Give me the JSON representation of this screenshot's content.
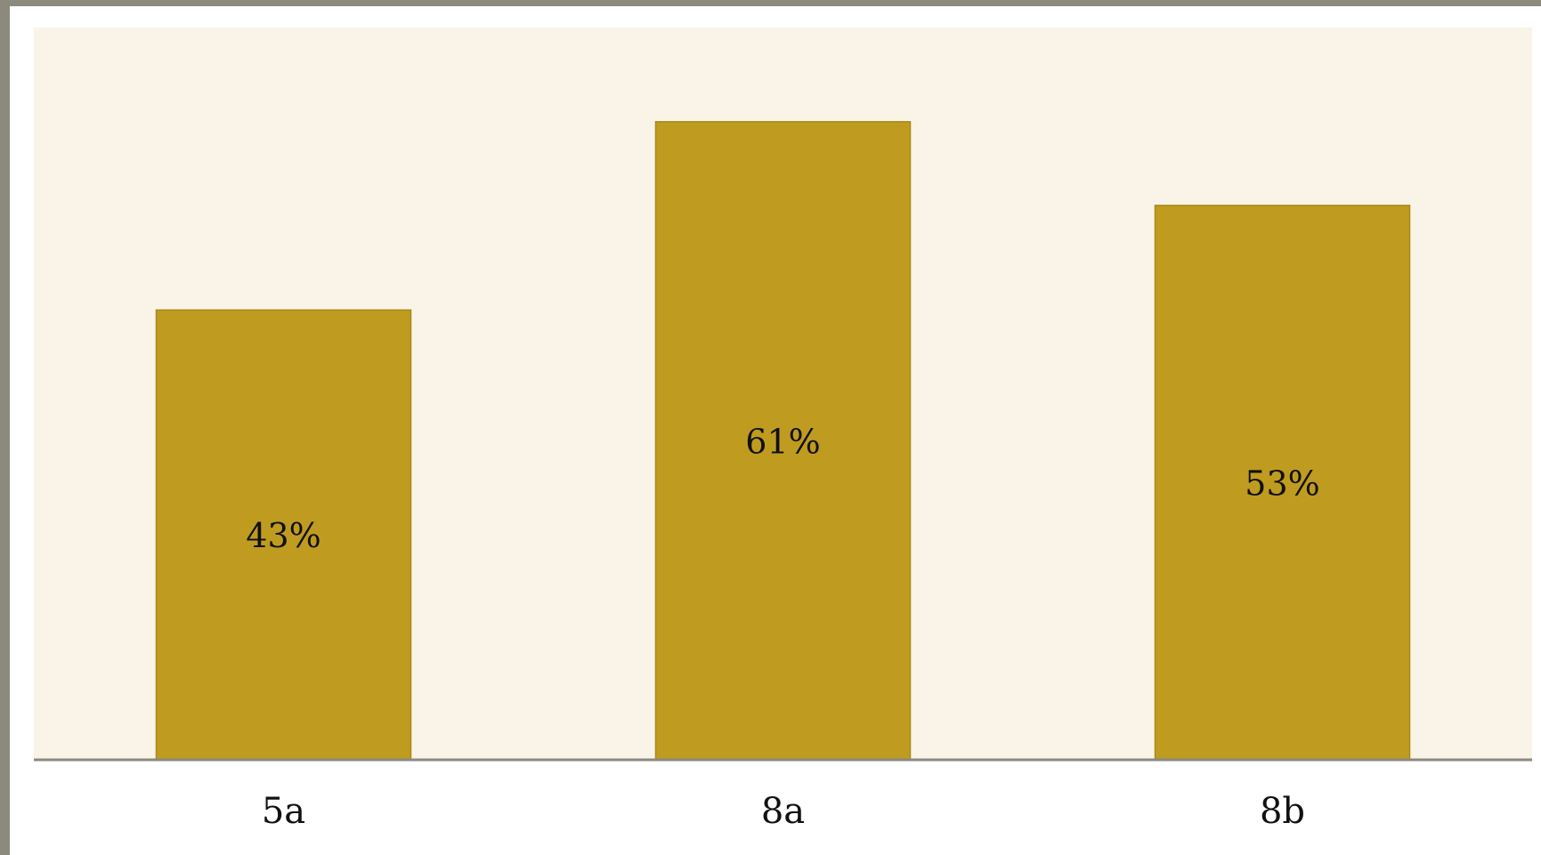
{
  "chart_data": {
    "type": "bar",
    "categories": [
      "5a",
      "8a",
      "8b"
    ],
    "values": [
      43,
      61,
      53
    ],
    "value_labels": [
      "43%",
      "61%",
      "53%"
    ],
    "title": "",
    "xlabel": "",
    "ylabel": "",
    "ylim": [
      0,
      70
    ],
    "grid": false,
    "legend": "none",
    "colors": {
      "bar": "#bf9b20",
      "bar_stroke": "#a98a18",
      "plot_background": "#faf3e8",
      "axis": "#8a8a80"
    }
  }
}
